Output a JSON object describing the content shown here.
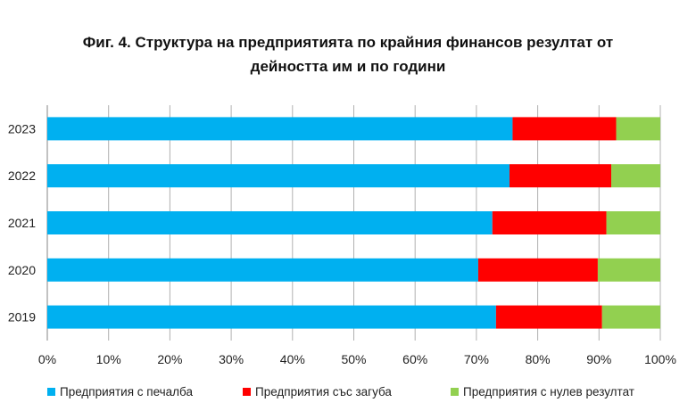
{
  "chart_data": {
    "type": "bar",
    "orientation": "horizontal",
    "stacked": true,
    "title_line1": "Фиг. 4. Структура на предприятията по крайния финансов резултат от",
    "title_line2": "дейността им и по години",
    "categories": [
      "2023",
      "2022",
      "2021",
      "2020",
      "2019"
    ],
    "series": [
      {
        "name": "Предприятия с печалба",
        "color": "#00b0f0",
        "values": [
          75.9,
          75.4,
          72.6,
          70.3,
          73.2
        ]
      },
      {
        "name": "Предприятия със загуба",
        "color": "#ff0000",
        "values": [
          16.9,
          16.6,
          18.6,
          19.5,
          17.3
        ]
      },
      {
        "name": "Предприятия с нулев резултат",
        "color": "#92d050",
        "values": [
          7.2,
          8.0,
          8.8,
          10.2,
          9.5
        ]
      }
    ],
    "xlim": [
      0,
      100
    ],
    "x_ticks": [
      "0%",
      "10%",
      "20%",
      "30%",
      "40%",
      "50%",
      "60%",
      "70%",
      "80%",
      "90%",
      "100%"
    ],
    "grid": true,
    "legend_position": "bottom"
  }
}
